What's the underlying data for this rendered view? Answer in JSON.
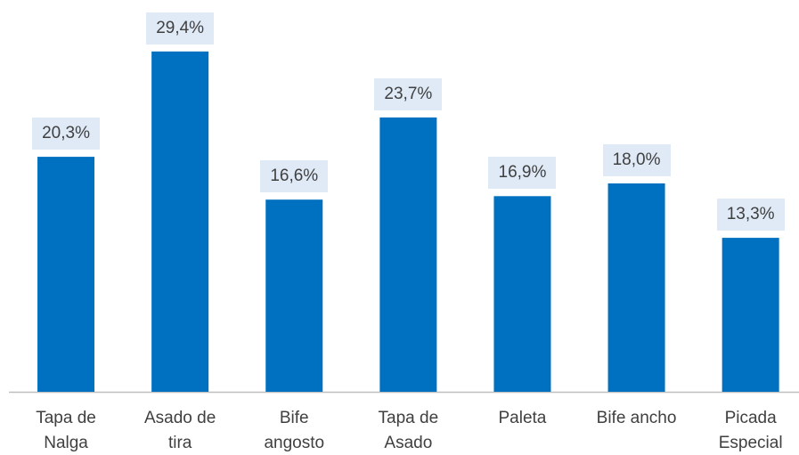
{
  "chart_data": {
    "type": "bar",
    "categories": [
      "Tapa de\nNalga",
      "Asado de\ntira",
      "Bife\nangosto",
      "Tapa de\nAsado",
      "Paleta",
      "Bife ancho",
      "Picada\nEspecial"
    ],
    "values": [
      20.3,
      29.4,
      16.6,
      23.7,
      16.9,
      18.0,
      13.3
    ],
    "value_labels": [
      "20,3%",
      "29,4%",
      "16,6%",
      "23,7%",
      "16,9%",
      "18,0%",
      "13,3%"
    ],
    "color": "#0070c0"
  }
}
